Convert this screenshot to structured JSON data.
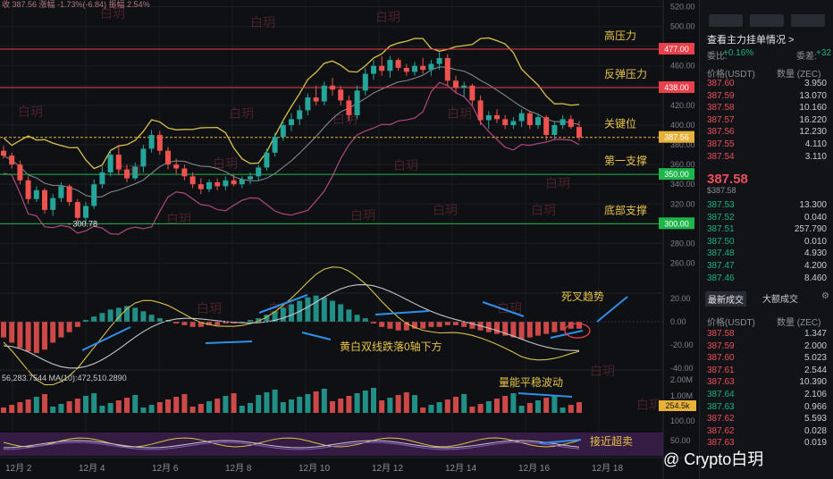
{
  "header": {
    "top_stats": "收 387.56  涨幅 -1.73%(-6.84)  振幅 2.54%"
  },
  "chart_data": {
    "type": "candlestick",
    "price_axis": {
      "ticks": [
        "520.00",
        "500.00",
        "480.00",
        "460.00",
        "440.00",
        "420.00",
        "400.00",
        "380.00",
        "360.00",
        "340.00",
        "320.00",
        "300.00",
        "280.00",
        "260.00"
      ],
      "ylim": [
        255,
        525
      ]
    },
    "x_axis_labels": [
      "12月 2",
      "12月 4",
      "12月 6",
      "12月 8",
      "12月 10",
      "12月 12",
      "12月 14",
      "12月 16",
      "12月 18"
    ],
    "levels": [
      {
        "name": "高压力",
        "value": 477,
        "value_label": "477.00",
        "color": "#e8414b"
      },
      {
        "name": "反弹压力",
        "value": 438,
        "value_label": "438.00",
        "color": "#e8414b"
      },
      {
        "name": "关键位",
        "value": 387.56,
        "value_label": "387.56",
        "color": "#e8b23a"
      },
      {
        "name": "第一支撑",
        "value": 350,
        "value_label": "350.00",
        "color": "#1fb74c"
      },
      {
        "name": "底部支撑",
        "value": 300,
        "value_label": "300.00",
        "color": "#1fb74c"
      }
    ],
    "low_label": "300.78",
    "candles": [
      [
        374,
        379,
        366,
        369
      ],
      [
        369,
        372,
        356,
        360
      ],
      [
        360,
        364,
        340,
        344
      ],
      [
        344,
        348,
        320,
        325
      ],
      [
        325,
        338,
        322,
        334
      ],
      [
        334,
        336,
        310,
        314
      ],
      [
        314,
        330,
        308,
        326
      ],
      [
        326,
        342,
        322,
        338
      ],
      [
        338,
        340,
        318,
        322
      ],
      [
        322,
        325,
        302,
        306
      ],
      [
        306,
        322,
        300.78,
        318
      ],
      [
        318,
        345,
        315,
        340
      ],
      [
        340,
        358,
        336,
        352
      ],
      [
        352,
        374,
        348,
        370
      ],
      [
        370,
        380,
        350,
        355
      ],
      [
        355,
        360,
        342,
        346
      ],
      [
        346,
        362,
        344,
        358
      ],
      [
        358,
        380,
        352,
        376
      ],
      [
        376,
        395,
        372,
        390
      ],
      [
        390,
        394,
        370,
        374
      ],
      [
        374,
        378,
        355,
        360
      ],
      [
        360,
        366,
        350,
        356
      ],
      [
        356,
        360,
        344,
        348
      ],
      [
        348,
        352,
        336,
        340
      ],
      [
        340,
        346,
        330,
        335
      ],
      [
        335,
        345,
        332,
        342
      ],
      [
        342,
        346,
        334,
        338
      ],
      [
        338,
        348,
        334,
        344
      ],
      [
        344,
        350,
        338,
        340
      ],
      [
        340,
        348,
        336,
        345
      ],
      [
        345,
        352,
        340,
        348
      ],
      [
        348,
        360,
        344,
        357
      ],
      [
        357,
        376,
        354,
        372
      ],
      [
        372,
        392,
        368,
        388
      ],
      [
        388,
        405,
        384,
        400
      ],
      [
        400,
        412,
        394,
        406
      ],
      [
        406,
        420,
        400,
        415
      ],
      [
        415,
        432,
        410,
        428
      ],
      [
        428,
        440,
        420,
        424
      ],
      [
        424,
        444,
        420,
        440
      ],
      [
        440,
        448,
        430,
        436
      ],
      [
        436,
        440,
        420,
        425
      ],
      [
        425,
        430,
        404,
        410
      ],
      [
        410,
        440,
        406,
        435
      ],
      [
        435,
        458,
        430,
        452
      ],
      [
        452,
        466,
        446,
        460
      ],
      [
        460,
        470,
        450,
        455
      ],
      [
        455,
        470,
        448,
        466
      ],
      [
        466,
        468,
        455,
        458
      ],
      [
        458,
        462,
        450,
        454
      ],
      [
        454,
        464,
        450,
        460
      ],
      [
        460,
        468,
        452,
        456
      ],
      [
        456,
        466,
        450,
        462
      ],
      [
        462,
        474,
        456,
        468
      ],
      [
        468,
        472,
        440,
        445
      ],
      [
        445,
        450,
        432,
        438
      ],
      [
        438,
        444,
        428,
        440
      ],
      [
        440,
        442,
        420,
        425
      ],
      [
        425,
        430,
        400,
        405
      ],
      [
        405,
        414,
        396,
        410
      ],
      [
        410,
        416,
        402,
        406
      ],
      [
        406,
        410,
        396,
        400
      ],
      [
        400,
        408,
        396,
        404
      ],
      [
        404,
        416,
        398,
        412
      ],
      [
        412,
        414,
        396,
        400
      ],
      [
        400,
        412,
        396,
        408
      ],
      [
        408,
        410,
        384,
        390
      ],
      [
        390,
        404,
        386,
        400
      ],
      [
        400,
        410,
        396,
        406
      ],
      [
        406,
        410,
        396,
        398
      ],
      [
        398,
        404,
        384,
        387.56
      ]
    ],
    "macd": {
      "axis_ticks": [
        "20.00",
        "0.00",
        "-20.00",
        "-40.00"
      ],
      "hist": [
        -9,
        -12,
        -15,
        -17,
        -18,
        -16,
        -12,
        -9,
        -6,
        -3,
        1,
        3,
        5,
        7,
        8,
        9,
        8,
        6,
        4,
        2,
        1,
        -1,
        -2,
        -3,
        -3,
        -2,
        -2,
        -1,
        -1,
        0,
        1,
        2,
        4,
        6,
        8,
        10,
        12,
        14,
        15,
        14,
        12,
        10,
        7,
        4,
        2,
        -1,
        -3,
        -4,
        -5,
        -5,
        -4,
        -4,
        -3,
        -3,
        -2,
        -2,
        -3,
        -4,
        -5,
        -6,
        -7,
        -8,
        -9,
        -10,
        -9,
        -8,
        -7,
        -6,
        -5,
        -4,
        -4
      ]
    },
    "volume": {
      "ma_label": "56,283.7544  MA(10):472,510.2890",
      "axis_ticks": [
        "2.00M",
        "1.00M"
      ],
      "current_label": "254.5k"
    },
    "rsi": {
      "axis_ticks": [
        "100.00",
        "50.00"
      ]
    },
    "annotations": [
      "黄白双线跌落0轴下方",
      "量能平稳波动",
      "死叉趋势",
      "接近超卖"
    ]
  },
  "orderbook": {
    "top_buttons": [
      "",
      "",
      ""
    ],
    "title": "查看主力挂单情况 >",
    "ratio_left_label": "委比:",
    "ratio_left": "+0.16%",
    "ratio_right_label": "委差:",
    "ratio_right": "+32",
    "col_price": "价格(USDT)",
    "col_qty": "数量 (ZEC)",
    "asks": [
      [
        "387.60",
        "3.950"
      ],
      [
        "387.59",
        "13.070"
      ],
      [
        "387.58",
        "10.160"
      ],
      [
        "387.57",
        "16.220"
      ],
      [
        "387.56",
        "12.230"
      ],
      [
        "387.55",
        "4.110"
      ],
      [
        "387.54",
        "3.110"
      ]
    ],
    "last_price": "387.58",
    "last_price_sub": "$387.58",
    "bids": [
      [
        "387.53",
        "13.300"
      ],
      [
        "387.52",
        "0.040"
      ],
      [
        "387.51",
        "257.790"
      ],
      [
        "387.50",
        "0.010"
      ],
      [
        "387.48",
        "4.930"
      ],
      [
        "387.47",
        "4.200"
      ],
      [
        "387.46",
        "8.460"
      ]
    ],
    "tab_latest": "最新成交",
    "tab_large": "大额成交",
    "trades_col_price": "价格(USDT)",
    "trades_col_qty": "数量 (ZEC)",
    "trades": [
      [
        "387.58",
        "1.347",
        "ask"
      ],
      [
        "387.59",
        "2.000",
        "ask"
      ],
      [
        "387.60",
        "5.023",
        "ask"
      ],
      [
        "387.61",
        "2.544",
        "ask"
      ],
      [
        "387.63",
        "10.390",
        "ask"
      ],
      [
        "387.64",
        "2.106",
        "bid"
      ],
      [
        "387.63",
        "0.966",
        "bid"
      ],
      [
        "387.62",
        "5.593",
        "ask"
      ],
      [
        "387.62",
        "0.028",
        "ask"
      ],
      [
        "387.63",
        "0.019",
        "ask"
      ]
    ]
  },
  "watermark": "白玥",
  "brand": "@ Crypto白玥",
  "colors": {
    "up": "#ef5350",
    "down": "#26a69a",
    "macd_up": "#26a69a",
    "macd_down": "#ef5350",
    "bb": "#d8c24a",
    "dif": "#d8c24a",
    "dea": "#c7c9cf",
    "rsi": "#8a5cc4"
  }
}
